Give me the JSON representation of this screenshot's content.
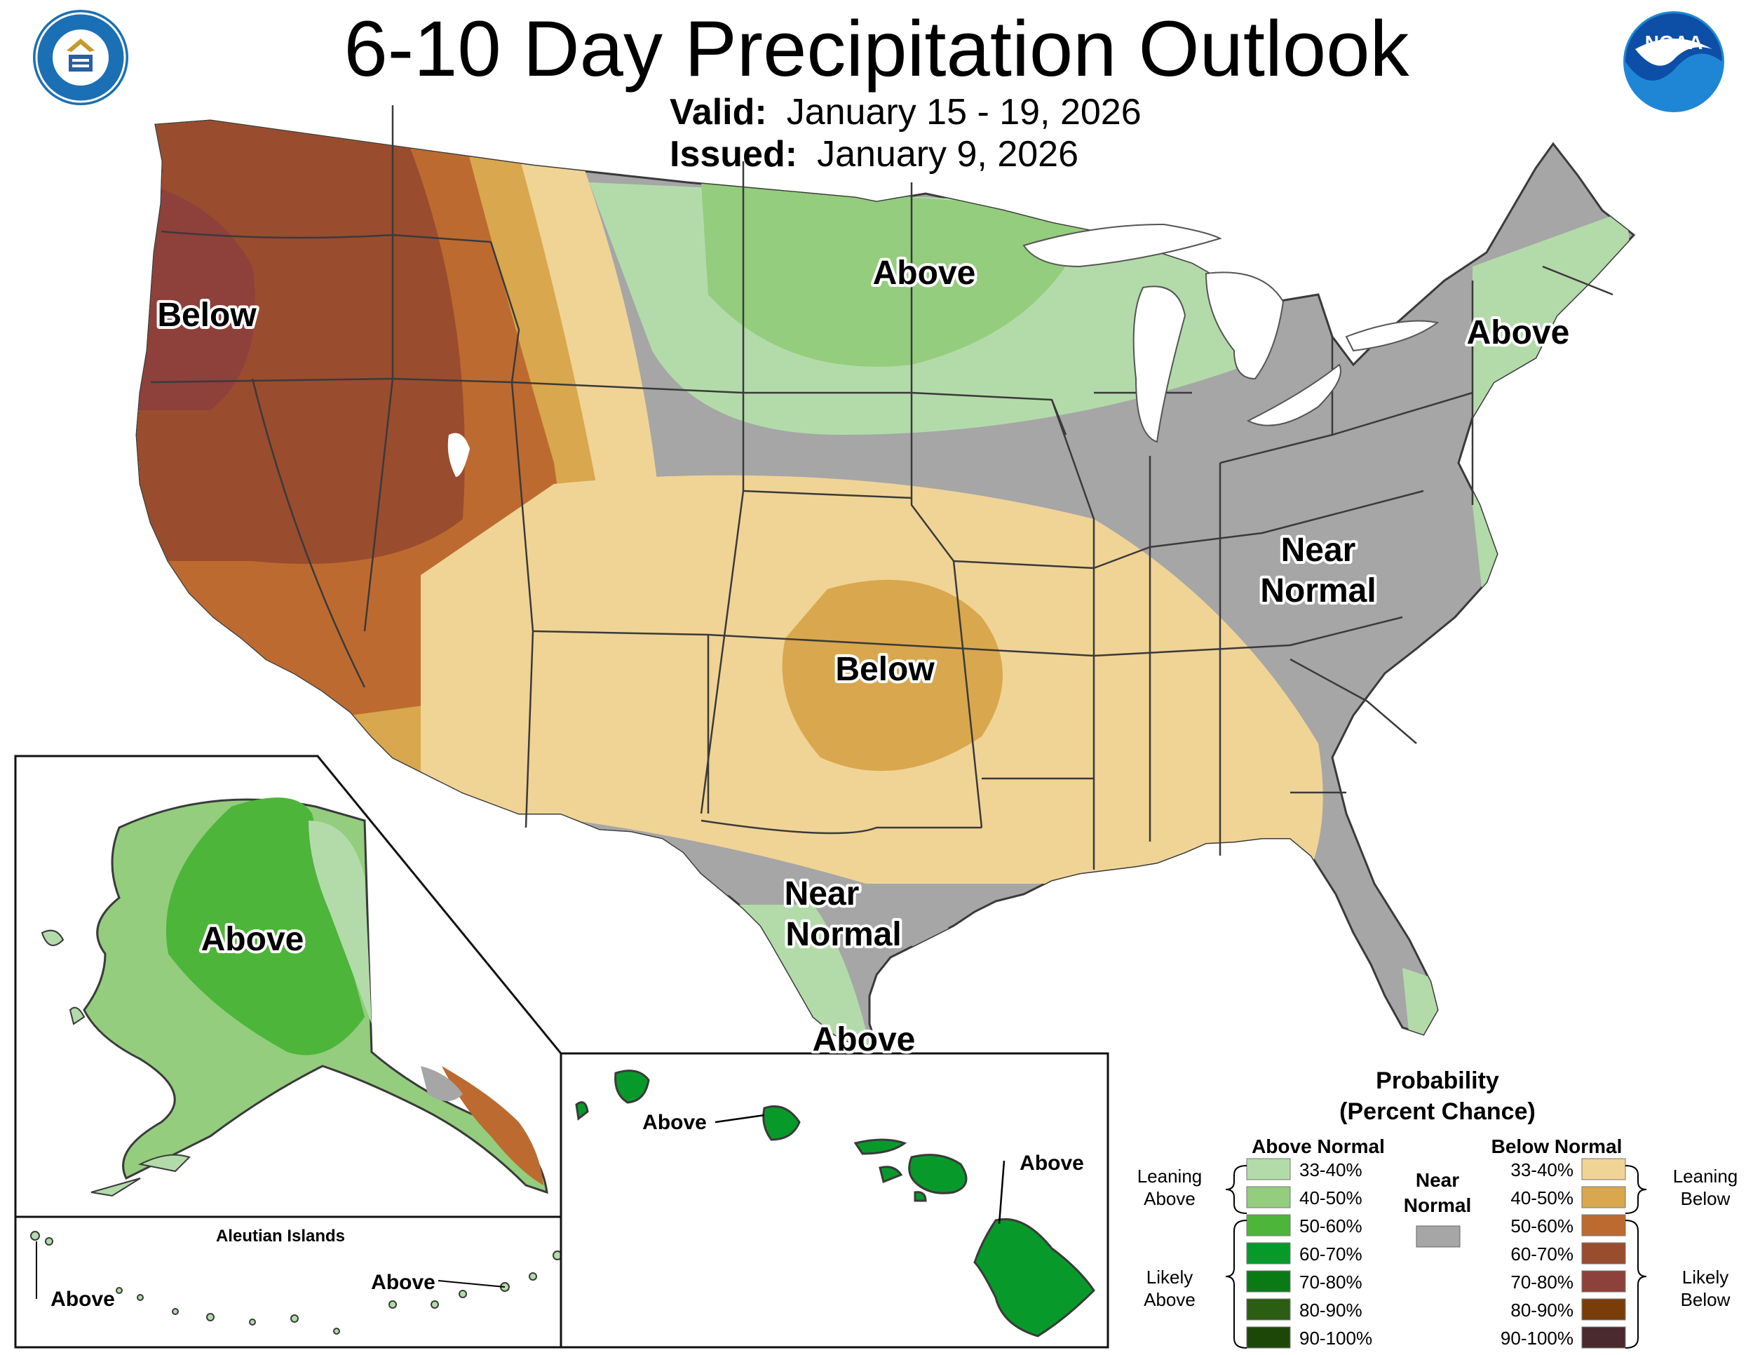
{
  "header": {
    "title": "6-10 Day Precipitation Outlook",
    "valid_label": "Valid:",
    "valid_value": "January 15 - 19, 2026",
    "issued_label": "Issued:",
    "issued_value": "January 9, 2026"
  },
  "logos": {
    "commerce_seal": "DEPARTMENT OF COMMERCE · UNITED STATES OF AMERICA",
    "noaa": "NOAA"
  },
  "map_labels": {
    "west": "Below",
    "north_central": "Above",
    "northeast": "Above",
    "east": [
      "Near",
      "Normal"
    ],
    "south_central": "Below",
    "texas": [
      "Near",
      "Normal"
    ],
    "south_texas": "Above",
    "alaska": "Above",
    "hawaii_west": "Above",
    "hawaii_east": "Above",
    "aleutian_title": "Aleutian Islands",
    "aleutian_west": "Above",
    "aleutian_east": "Above"
  },
  "legend": {
    "title_line1": "Probability",
    "title_line2": "(Percent Chance)",
    "above_header": "Above Normal",
    "below_header": "Below Normal",
    "near_header": [
      "Near",
      "Normal"
    ],
    "near_color": "#a6a6a6",
    "leaning_above": [
      "Leaning",
      "Above"
    ],
    "likely_above": [
      "Likely",
      "Above"
    ],
    "leaning_below": [
      "Leaning",
      "Below"
    ],
    "likely_below": [
      "Likely",
      "Below"
    ],
    "above_bins": [
      {
        "label": "33-40%",
        "color": "#b3dbaa"
      },
      {
        "label": "40-50%",
        "color": "#93cd7d"
      },
      {
        "label": "50-60%",
        "color": "#4db53a"
      },
      {
        "label": "60-70%",
        "color": "#079a2a"
      },
      {
        "label": "70-80%",
        "color": "#0a7a14"
      },
      {
        "label": "80-90%",
        "color": "#2b5e12"
      },
      {
        "label": "90-100%",
        "color": "#1d4709"
      }
    ],
    "below_bins": [
      {
        "label": "33-40%",
        "color": "#f0d496"
      },
      {
        "label": "40-50%",
        "color": "#d9a74d"
      },
      {
        "label": "50-60%",
        "color": "#bd6a30"
      },
      {
        "label": "60-70%",
        "color": "#9a4c2e"
      },
      {
        "label": "70-80%",
        "color": "#8e403b"
      },
      {
        "label": "80-90%",
        "color": "#7a3d0a"
      },
      {
        "label": "90-100%",
        "color": "#4a2a2e"
      }
    ]
  }
}
